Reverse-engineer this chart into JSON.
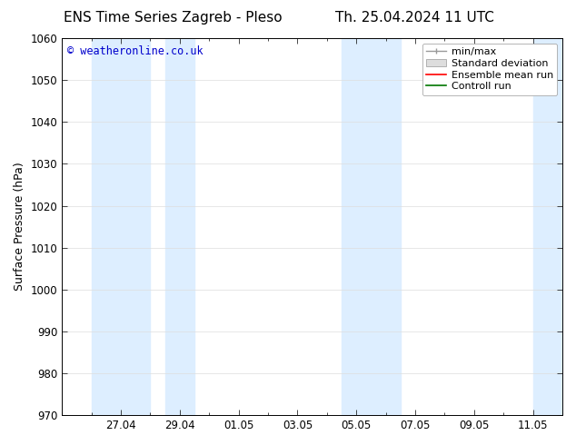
{
  "title_left": "ENS Time Series Zagreb - Pleso",
  "title_right": "Th. 25.04.2024 11 UTC",
  "ylabel": "Surface Pressure (hPa)",
  "ylim": [
    970,
    1060
  ],
  "yticks": [
    970,
    980,
    990,
    1000,
    1010,
    1020,
    1030,
    1040,
    1050,
    1060
  ],
  "xlabel_ticks": [
    "27.04",
    "29.04",
    "01.05",
    "03.05",
    "05.05",
    "07.05",
    "09.05",
    "11.05"
  ],
  "x_tick_positions": [
    2,
    4,
    6,
    8,
    10,
    12,
    14,
    16
  ],
  "xlim": [
    0,
    17
  ],
  "shaded_bands": [
    {
      "x_start": 1.0,
      "x_end": 3.0
    },
    {
      "x_start": 3.5,
      "x_end": 4.5
    },
    {
      "x_start": 9.5,
      "x_end": 11.5
    },
    {
      "x_start": 16.0,
      "x_end": 17.0
    }
  ],
  "shade_color": "#ddeeff",
  "watermark_text": "© weatheronline.co.uk",
  "watermark_color": "#0000cc",
  "background_color": "#ffffff",
  "plot_bg_color": "#ffffff",
  "title_fontsize": 11,
  "tick_fontsize": 8.5,
  "ylabel_fontsize": 9,
  "legend_fontsize": 8
}
